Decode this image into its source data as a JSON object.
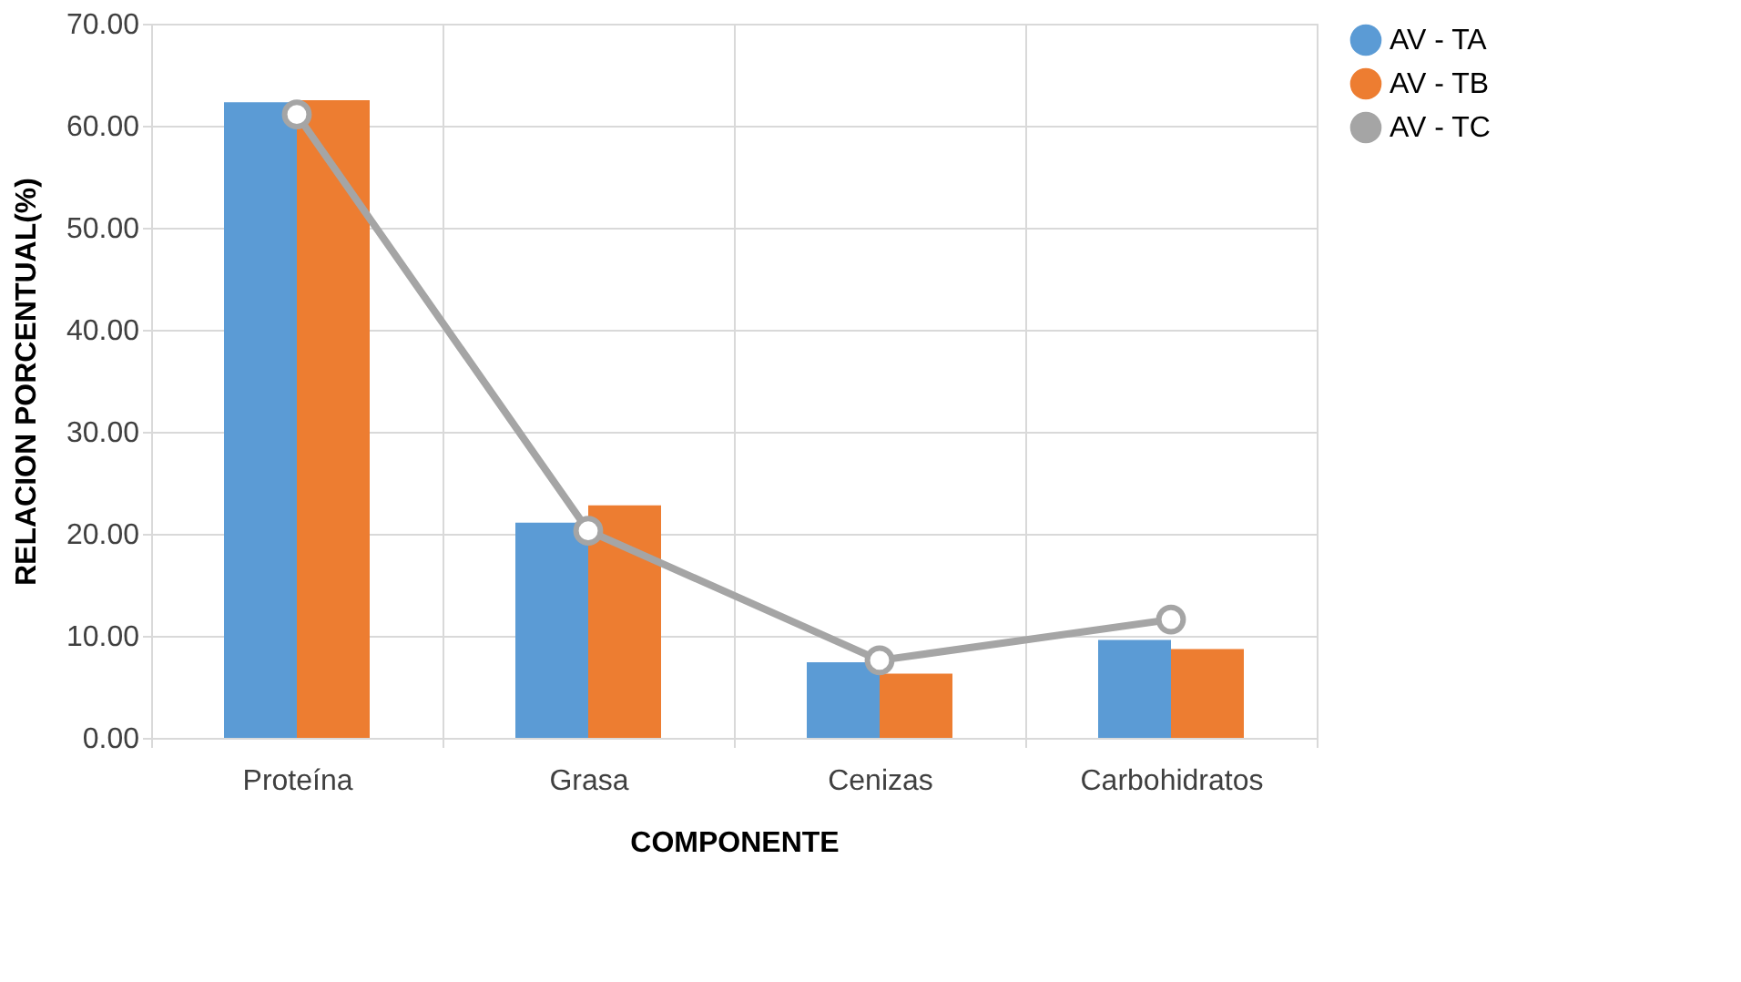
{
  "chart_data": {
    "type": "bar",
    "xlabel": "COMPONENTE",
    "ylabel": "RELACION PORCENTUAL(%)",
    "categories": [
      "Proteína",
      "Grasa",
      "Cenizas",
      "Carbohidratos"
    ],
    "series": [
      {
        "name": "AV - TA",
        "color": "#5b9bd5",
        "values": [
          62.3,
          21.1,
          7.4,
          9.6
        ]
      },
      {
        "name": "AV - TB",
        "color": "#ed7d31",
        "values": [
          62.5,
          22.8,
          6.3,
          8.7
        ]
      },
      {
        "name": "AV - TC",
        "color": "#a5a5a5",
        "type": "line",
        "values": [
          61.1,
          20.3,
          7.6,
          11.6
        ]
      }
    ],
    "ylim": [
      0,
      70
    ],
    "yticks": [
      {
        "value": 0,
        "label": "0.00"
      },
      {
        "value": 10,
        "label": "10.00"
      },
      {
        "value": 20,
        "label": "20.00"
      },
      {
        "value": 30,
        "label": "30.00"
      },
      {
        "value": 40,
        "label": "40.00"
      },
      {
        "value": 50,
        "label": "50.00"
      },
      {
        "value": 60,
        "label": "60.00"
      },
      {
        "value": 70,
        "label": "70.00"
      }
    ],
    "grid": true,
    "legend": "right",
    "marker": "circle",
    "line_style": "solid"
  }
}
